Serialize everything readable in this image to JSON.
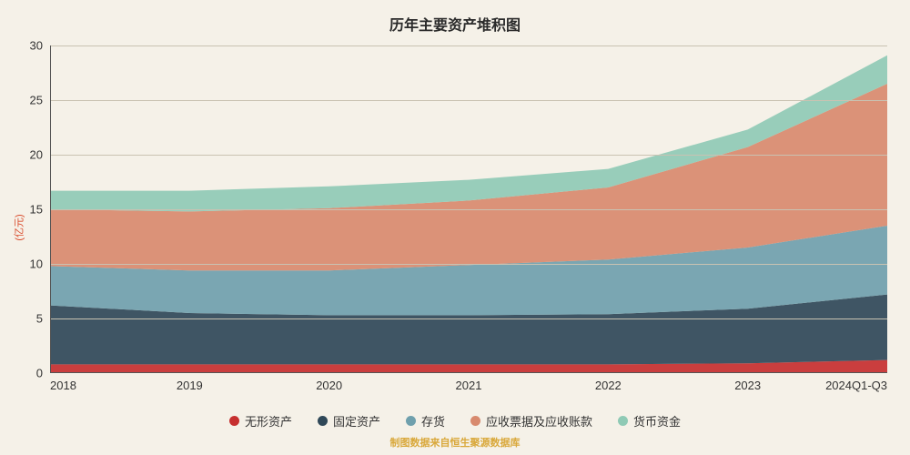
{
  "chart": {
    "type": "stacked-area",
    "title": "历年主要资产堆积图",
    "ylabel": "(亿元)",
    "source_note": "制图数据来自恒生聚源数据库",
    "background_color": "#f5f1e8",
    "grid_color": "#c9c2b2",
    "axis_color": "#555555",
    "title_fontsize": 16,
    "label_fontsize": 13,
    "ylim": [
      0,
      30
    ],
    "ytick_step": 5,
    "categories": [
      "2018",
      "2019",
      "2020",
      "2021",
      "2022",
      "2023",
      "2024Q1-Q3"
    ],
    "series": [
      {
        "name": "无形资产",
        "color": "#c62f2f",
        "values": [
          0.8,
          0.8,
          0.8,
          0.8,
          0.8,
          0.9,
          1.2
        ]
      },
      {
        "name": "固定资产",
        "color": "#2f4858",
        "values": [
          5.4,
          4.7,
          4.5,
          4.5,
          4.6,
          5.0,
          6.0
        ]
      },
      {
        "name": "存货",
        "color": "#6fa0ad",
        "values": [
          3.6,
          3.9,
          4.1,
          4.6,
          5.0,
          5.6,
          6.3
        ]
      },
      {
        "name": "应收票据及应收账款",
        "color": "#d88a6e",
        "values": [
          5.2,
          5.4,
          5.7,
          5.9,
          6.6,
          9.2,
          13.0
        ]
      },
      {
        "name": "货币资金",
        "color": "#8fcab5",
        "values": [
          1.7,
          1.9,
          2.0,
          1.9,
          1.7,
          1.6,
          2.6
        ]
      }
    ]
  }
}
